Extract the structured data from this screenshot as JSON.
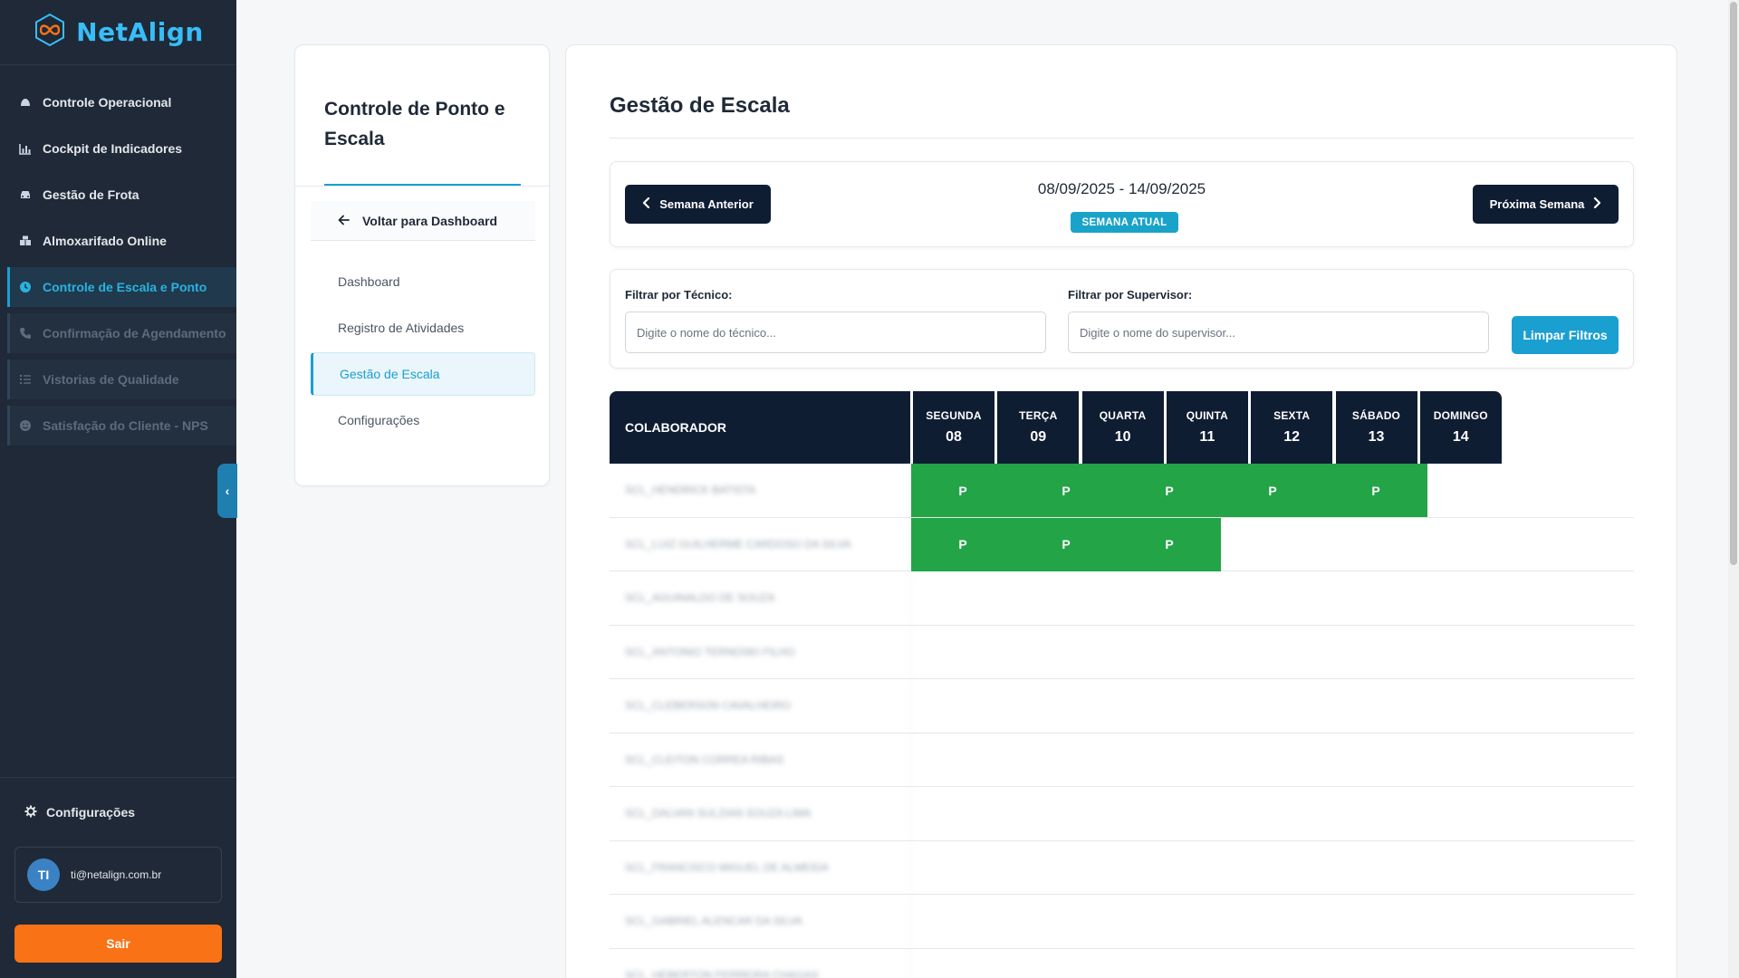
{
  "brand": {
    "name": "NetAlign"
  },
  "sidebar": {
    "items": [
      {
        "label": "Controle Operacional",
        "icon": "helmet-icon",
        "state": "normal"
      },
      {
        "label": "Cockpit de Indicadores",
        "icon": "chart-icon",
        "state": "normal"
      },
      {
        "label": "Gestão de Frota",
        "icon": "car-icon",
        "state": "normal"
      },
      {
        "label": "Almoxarifado Online",
        "icon": "boxes-icon",
        "state": "normal"
      },
      {
        "label": "Controle de Escala e Ponto",
        "icon": "clock-icon",
        "state": "active"
      },
      {
        "label": "Confirmação de Agendamento",
        "icon": "phone-icon",
        "state": "disabled"
      },
      {
        "label": "Vistorias de Qualidade",
        "icon": "list-icon",
        "state": "disabled"
      },
      {
        "label": "Satisfação do Cliente - NPS",
        "icon": "smile-icon",
        "state": "disabled"
      }
    ],
    "settings_label": "Configurações",
    "user": {
      "initials": "TI",
      "email": "ti@netalign.com.br"
    },
    "logout_label": "Sair"
  },
  "subpanel": {
    "title": "Controle de Ponto e Escala",
    "back_label": "Voltar para Dashboard",
    "items": [
      {
        "label": "Dashboard",
        "active": false
      },
      {
        "label": "Registro de Atividades",
        "active": false
      },
      {
        "label": "Gestão de Escala",
        "active": true
      },
      {
        "label": "Configurações",
        "active": false
      }
    ]
  },
  "main": {
    "title": "Gestão de Escala",
    "week": {
      "prev_label": "Semana Anterior",
      "next_label": "Próxima Semana",
      "range": "08/09/2025 - 14/09/2025",
      "badge": "SEMANA ATUAL"
    },
    "filters": {
      "tech_label": "Filtrar por Técnico:",
      "tech_placeholder": "Digite o nome do técnico...",
      "sup_label": "Filtrar por Supervisor:",
      "sup_placeholder": "Digite o nome do supervisor...",
      "clear_label": "Limpar Filtros"
    },
    "grid": {
      "collab_header": "COLABORADOR",
      "days": [
        {
          "name": "SEGUNDA",
          "num": "08"
        },
        {
          "name": "TERÇA",
          "num": "09"
        },
        {
          "name": "QUARTA",
          "num": "10"
        },
        {
          "name": "QUINTA",
          "num": "11"
        },
        {
          "name": "SEXTA",
          "num": "12"
        },
        {
          "name": "SÁBADO",
          "num": "13"
        },
        {
          "name": "DOMINGO",
          "num": "14"
        }
      ],
      "rows": [
        {
          "name": "SCL_HENDRICK BATISTA",
          "cells": [
            "P",
            "P",
            "P",
            "P",
            "P",
            "",
            ""
          ]
        },
        {
          "name": "SCL_LUIZ GUILHERME CARDOSO DA SILVA",
          "cells": [
            "P",
            "P",
            "P",
            "",
            "",
            "",
            ""
          ]
        },
        {
          "name": "SCL_AGUINALDO DE SOUZA",
          "cells": [
            "",
            "",
            "",
            "",
            "",
            "",
            ""
          ]
        },
        {
          "name": "SCL_ANTONIO TERNOSKI FILHO",
          "cells": [
            "",
            "",
            "",
            "",
            "",
            "",
            ""
          ]
        },
        {
          "name": "SCL_CLEBERSON CAVALHEIRO",
          "cells": [
            "",
            "",
            "",
            "",
            "",
            "",
            ""
          ]
        },
        {
          "name": "SCL_CLEITON CORREA RIBAS",
          "cells": [
            "",
            "",
            "",
            "",
            "",
            "",
            ""
          ]
        },
        {
          "name": "SCL_DALVAN SULZIAN SOUZA LIMA",
          "cells": [
            "",
            "",
            "",
            "",
            "",
            "",
            ""
          ]
        },
        {
          "name": "SCL_FRANCISCO MIGUEL DE ALMEIDA",
          "cells": [
            "",
            "",
            "",
            "",
            "",
            "",
            ""
          ]
        },
        {
          "name": "SCL_GABRIEL ALENCAR DA SILVA",
          "cells": [
            "",
            "",
            "",
            "",
            "",
            "",
            ""
          ]
        },
        {
          "name": "SCL_HEBERTON FERREIRA CHAGAS",
          "cells": [
            "",
            "",
            "",
            "",
            "",
            "",
            ""
          ]
        }
      ]
    }
  }
}
